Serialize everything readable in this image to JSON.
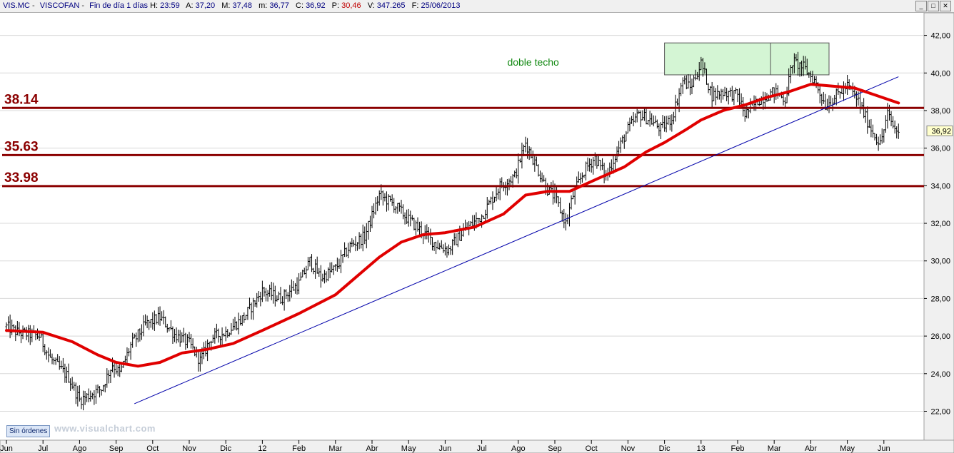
{
  "header": {
    "symbol": "VIS.MC",
    "name": "VISCOFAN",
    "period": "Fin de día 1 días",
    "fields": [
      {
        "label": "H:",
        "value": "23:59"
      },
      {
        "label": "A:",
        "value": "37,20"
      },
      {
        "label": "M:",
        "value": "37,48"
      },
      {
        "label": "m:",
        "value": "36,77"
      },
      {
        "label": "C:",
        "value": "36,92"
      },
      {
        "label": "P:",
        "value": "30,46",
        "negative": true
      },
      {
        "label": "V:",
        "value": "347.265"
      },
      {
        "label": "F:",
        "value": "25/06/2013"
      }
    ]
  },
  "window_buttons": [
    "minimize-icon",
    "restore-icon",
    "close-icon"
  ],
  "footer": {
    "orders_label": "Sin órdenes",
    "watermark": "www.visualchart.com"
  },
  "chart_data": {
    "type": "candlestick-line",
    "title": "",
    "xlabel": "",
    "ylabel": "",
    "ylim": [
      20.5,
      43.2
    ],
    "y_ticks": [
      "22,00",
      "24,00",
      "26,00",
      "28,00",
      "30,00",
      "32,00",
      "34,00",
      "36,00",
      "38,00",
      "40,00",
      "42,00"
    ],
    "x_ticks": [
      "Jun",
      "Jul",
      "Ago",
      "Sep",
      "Oct",
      "Nov",
      "Dic",
      "12",
      "Feb",
      "Mar",
      "Abr",
      "May",
      "Jun",
      "Jul",
      "Ago",
      "Sep",
      "Oct",
      "Nov",
      "Dic",
      "13",
      "Feb",
      "Mar",
      "Abr",
      "May",
      "Jun"
    ],
    "last_price_label": "36,92",
    "last_price": 36.92,
    "grid": "horizontal",
    "colors": {
      "price": "#000000",
      "moving_average": "#e00000",
      "trendline": "#0000aa",
      "support_lines": "#8b0000",
      "annotation_text": "#118811",
      "box_fill": "#d4f5d4",
      "box_border": "#555555"
    },
    "price_keypoints": [
      {
        "t": 0,
        "v": 26.5
      },
      {
        "t": 0.3,
        "v": 26.2
      },
      {
        "t": 0.9,
        "v": 26.0
      },
      {
        "t": 1.2,
        "v": 24.8
      },
      {
        "t": 1.7,
        "v": 23.8
      },
      {
        "t": 2.0,
        "v": 22.6
      },
      {
        "t": 2.3,
        "v": 22.9
      },
      {
        "t": 2.6,
        "v": 23.2
      },
      {
        "t": 2.9,
        "v": 24.5
      },
      {
        "t": 3.1,
        "v": 24.0
      },
      {
        "t": 3.4,
        "v": 25.5
      },
      {
        "t": 3.8,
        "v": 26.6
      },
      {
        "t": 4.2,
        "v": 27.0
      },
      {
        "t": 4.6,
        "v": 26.1
      },
      {
        "t": 5.0,
        "v": 25.6
      },
      {
        "t": 5.3,
        "v": 24.7
      },
      {
        "t": 5.6,
        "v": 25.9
      },
      {
        "t": 6.0,
        "v": 26.2
      },
      {
        "t": 6.5,
        "v": 27.0
      },
      {
        "t": 7.0,
        "v": 28.4
      },
      {
        "t": 7.5,
        "v": 28.0
      },
      {
        "t": 8.0,
        "v": 28.8
      },
      {
        "t": 8.3,
        "v": 30.0
      },
      {
        "t": 8.6,
        "v": 29.1
      },
      {
        "t": 9.0,
        "v": 29.6
      },
      {
        "t": 9.4,
        "v": 30.8
      },
      {
        "t": 9.8,
        "v": 31.3
      },
      {
        "t": 10.2,
        "v": 33.5
      },
      {
        "t": 10.6,
        "v": 33.0
      },
      {
        "t": 11.0,
        "v": 32.2
      },
      {
        "t": 11.4,
        "v": 31.5
      },
      {
        "t": 11.8,
        "v": 30.8
      },
      {
        "t": 12.1,
        "v": 30.6
      },
      {
        "t": 12.5,
        "v": 31.6
      },
      {
        "t": 13.0,
        "v": 32.4
      },
      {
        "t": 13.5,
        "v": 34.0
      },
      {
        "t": 13.9,
        "v": 34.5
      },
      {
        "t": 14.2,
        "v": 36.3
      },
      {
        "t": 14.5,
        "v": 35.0
      },
      {
        "t": 14.8,
        "v": 33.8
      },
      {
        "t": 15.0,
        "v": 33.4
      },
      {
        "t": 15.3,
        "v": 32.0
      },
      {
        "t": 15.5,
        "v": 33.5
      },
      {
        "t": 15.8,
        "v": 34.8
      },
      {
        "t": 16.1,
        "v": 35.5
      },
      {
        "t": 16.4,
        "v": 34.5
      },
      {
        "t": 16.7,
        "v": 35.8
      },
      {
        "t": 17.0,
        "v": 37.0
      },
      {
        "t": 17.3,
        "v": 37.8
      },
      {
        "t": 17.6,
        "v": 37.5
      },
      {
        "t": 17.9,
        "v": 37.0
      },
      {
        "t": 18.2,
        "v": 37.6
      },
      {
        "t": 18.5,
        "v": 39.6
      },
      {
        "t": 18.7,
        "v": 39.2
      },
      {
        "t": 19.0,
        "v": 40.5
      },
      {
        "t": 19.3,
        "v": 38.8
      },
      {
        "t": 19.6,
        "v": 39.0
      },
      {
        "t": 20.0,
        "v": 38.8
      },
      {
        "t": 20.2,
        "v": 37.8
      },
      {
        "t": 20.6,
        "v": 38.6
      },
      {
        "t": 21.0,
        "v": 39.0
      },
      {
        "t": 21.3,
        "v": 38.6
      },
      {
        "t": 21.5,
        "v": 40.6
      },
      {
        "t": 21.8,
        "v": 40.3
      },
      {
        "t": 22.1,
        "v": 39.6
      },
      {
        "t": 22.4,
        "v": 38.3
      },
      {
        "t": 22.7,
        "v": 38.8
      },
      {
        "t": 23.0,
        "v": 39.3
      },
      {
        "t": 23.3,
        "v": 38.5
      },
      {
        "t": 23.6,
        "v": 37.2
      },
      {
        "t": 23.9,
        "v": 36.2
      },
      {
        "t": 24.1,
        "v": 37.8
      },
      {
        "t": 24.3,
        "v": 37.0
      },
      {
        "t": 24.4,
        "v": 36.92
      }
    ],
    "moving_average_keypoints": [
      {
        "t": 0,
        "v": 26.3
      },
      {
        "t": 1.0,
        "v": 26.2
      },
      {
        "t": 1.8,
        "v": 25.7
      },
      {
        "t": 2.5,
        "v": 25.0
      },
      {
        "t": 3.0,
        "v": 24.6
      },
      {
        "t": 3.6,
        "v": 24.4
      },
      {
        "t": 4.2,
        "v": 24.6
      },
      {
        "t": 4.8,
        "v": 25.1
      },
      {
        "t": 5.5,
        "v": 25.3
      },
      {
        "t": 6.2,
        "v": 25.6
      },
      {
        "t": 7.0,
        "v": 26.3
      },
      {
        "t": 8.0,
        "v": 27.2
      },
      {
        "t": 9.0,
        "v": 28.2
      },
      {
        "t": 9.6,
        "v": 29.2
      },
      {
        "t": 10.2,
        "v": 30.2
      },
      {
        "t": 10.8,
        "v": 31.0
      },
      {
        "t": 11.4,
        "v": 31.4
      },
      {
        "t": 12.0,
        "v": 31.5
      },
      {
        "t": 12.8,
        "v": 31.8
      },
      {
        "t": 13.6,
        "v": 32.5
      },
      {
        "t": 14.2,
        "v": 33.5
      },
      {
        "t": 14.8,
        "v": 33.7
      },
      {
        "t": 15.4,
        "v": 33.7
      },
      {
        "t": 16.2,
        "v": 34.4
      },
      {
        "t": 16.9,
        "v": 35.0
      },
      {
        "t": 17.5,
        "v": 35.8
      },
      {
        "t": 18.0,
        "v": 36.3
      },
      {
        "t": 18.6,
        "v": 37.0
      },
      {
        "t": 19.0,
        "v": 37.5
      },
      {
        "t": 19.6,
        "v": 38.0
      },
      {
        "t": 20.2,
        "v": 38.3
      },
      {
        "t": 20.8,
        "v": 38.7
      },
      {
        "t": 21.4,
        "v": 39.0
      },
      {
        "t": 22.0,
        "v": 39.4
      },
      {
        "t": 22.6,
        "v": 39.3
      },
      {
        "t": 23.2,
        "v": 39.2
      },
      {
        "t": 23.8,
        "v": 38.8
      },
      {
        "t": 24.4,
        "v": 38.4
      }
    ],
    "horizontal_lines": [
      {
        "label": "38.14",
        "value": 38.14
      },
      {
        "label": "35.63",
        "value": 35.63
      },
      {
        "label": "33.98",
        "value": 33.98
      }
    ],
    "trendline": {
      "start": {
        "t": 3.5,
        "v": 22.4
      },
      "end": {
        "t": 24.4,
        "v": 39.8
      }
    },
    "annotation": {
      "text": "doble techo",
      "t": 13.7,
      "v": 40.4
    },
    "highlight_box": {
      "t_start": 18.0,
      "t_end": 22.5,
      "v_low": 39.9,
      "v_high": 41.6,
      "divider_t": 20.9
    }
  }
}
